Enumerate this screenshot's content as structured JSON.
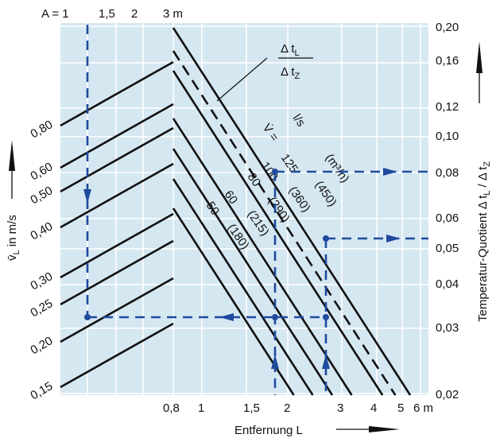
{
  "colors": {
    "background": "#ffffff",
    "panel": "#d5e7f1",
    "grid": "#ffffff",
    "lines": "#111111",
    "arrows": "#1f4a9e"
  },
  "chart_data": {
    "type": "line",
    "grid": true,
    "top_axis": {
      "prefix": "A = 1",
      "ticks": [
        "1,5",
        "2",
        "3 m"
      ]
    },
    "x_axis": {
      "label": "Entfernung L",
      "scale": "log",
      "ticks": [
        "0,8",
        "1",
        "1,5",
        "2",
        "3",
        "4",
        "5",
        "6 m"
      ]
    },
    "left_axis": {
      "label_base": "v̄",
      "label_sub": "L",
      "label_rest": " in m/s",
      "ticks": [
        "0,80",
        "0,60",
        "0,50",
        "0,40",
        "0,30",
        "0,25",
        "0,20",
        "0,15"
      ]
    },
    "right_axis": {
      "label": "Temperatur-Quotient Δ t",
      "label_sub1": "L",
      "label_mid": " / Δ t",
      "label_sub2": "Z",
      "scale": "log",
      "ticks": [
        "0,20",
        "0,16",
        "0,12",
        "0,10",
        "0,08",
        "0,06",
        "0,05",
        "0,04",
        "0,03",
        "0,02"
      ]
    },
    "annotation_fraction": {
      "num": "Δ t",
      "num_sub": "L",
      "den": "Δ t",
      "den_sub": "Z"
    },
    "series": [
      {
        "name": "125",
        "flow": "(450)"
      },
      {
        "name": "100",
        "flow": "(360)"
      },
      {
        "name": "80",
        "flow": "(290)"
      },
      {
        "name": "60",
        "flow": "(215)"
      },
      {
        "name": "50",
        "flow": "(180)"
      }
    ],
    "series_labels": {
      "v": "V̇ =",
      "unit_ls": "l/s",
      "unit_m3h": "(m³/h)"
    }
  }
}
